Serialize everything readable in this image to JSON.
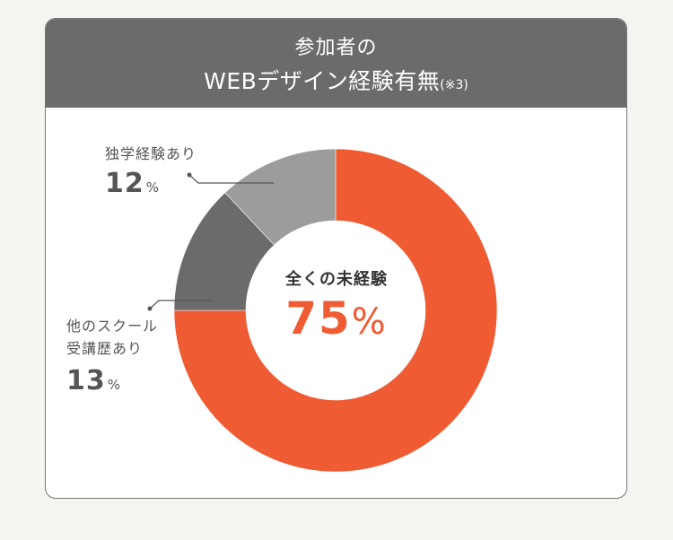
{
  "header": {
    "title_line1": "参加者の",
    "title_line2": "WEBデザイン経験有無",
    "note": "(※3)"
  },
  "center": {
    "label": "全くの未経験",
    "value": "75",
    "unit": "%"
  },
  "labels": {
    "self_study": {
      "line1": "独学経験あり",
      "value": "12",
      "unit": "%"
    },
    "other_school": {
      "line1": "他のスクール",
      "line2": "受講歴あり",
      "value": "13",
      "unit": "%"
    }
  },
  "colors": {
    "header_bg": "#6b6b6b",
    "none": "#ef5b32",
    "other_school": "#6b6b6b",
    "self_study": "#9c9c9c",
    "page_bg": "#f5f4f0"
  },
  "chart_data": {
    "type": "pie",
    "subtype": "donut",
    "title": "参加者のWEBデザイン経験有無(※3)",
    "categories": [
      "全くの未経験",
      "他のスクール受講歴あり",
      "独学経験あり"
    ],
    "values": [
      75,
      13,
      12
    ],
    "unit": "%",
    "colors": [
      "#ef5b32",
      "#6b6b6b",
      "#9c9c9c"
    ],
    "start_angle": "12 o'clock, clockwise",
    "legend": "none (callout labels)"
  }
}
